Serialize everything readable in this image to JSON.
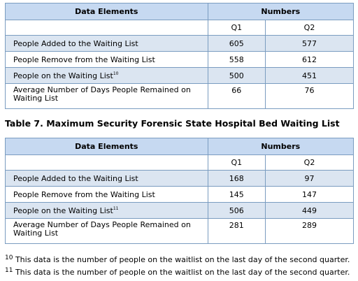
{
  "table1": {
    "header": {
      "col1": "Data Elements",
      "col2": "Numbers"
    },
    "subheader": {
      "q1": "Q1",
      "q2": "Q2"
    },
    "rows": [
      {
        "label": "People Added to the Waiting List",
        "sup": "",
        "q1": "605",
        "q2": "577"
      },
      {
        "label": "People Remove from the Waiting List",
        "sup": "",
        "q1": "558",
        "q2": "612"
      },
      {
        "label": "People on the Waiting List",
        "sup": "10",
        "q1": "500",
        "q2": "451"
      },
      {
        "label_line1": "Average Number of Days People Remained on",
        "label_line2": "Waiting List",
        "q1": "66",
        "q2": "76"
      }
    ]
  },
  "table2": {
    "caption": "Table 7. Maximum Security Forensic State Hospital Bed Waiting List",
    "header": {
      "col1": "Data Elements",
      "col2": "Numbers"
    },
    "subheader": {
      "q1": "Q1",
      "q2": "Q2"
    },
    "rows": [
      {
        "label": "People Added to the Waiting List",
        "sup": "",
        "q1": "168",
        "q2": "97"
      },
      {
        "label": "People Remove from the Waiting List",
        "sup": "",
        "q1": "145",
        "q2": "147"
      },
      {
        "label": "People on the Waiting List",
        "sup": "11",
        "q1": "506",
        "q2": "449"
      },
      {
        "label_line1": "Average Number of Days People Remained on",
        "label_line2": "Waiting List",
        "q1": "281",
        "q2": "289"
      }
    ]
  },
  "footnotes": [
    {
      "num": "10",
      "text": "This data is the number of people on the waitlist on the last day of the second quarter."
    },
    {
      "num": "11",
      "text": "This data is the number of people on the waitlist on the last day of the second quarter."
    }
  ],
  "colors": {
    "header_bg": "#c6d9f1",
    "row_alt_bg": "#dbe5f1",
    "border": "#7a9cc0"
  }
}
